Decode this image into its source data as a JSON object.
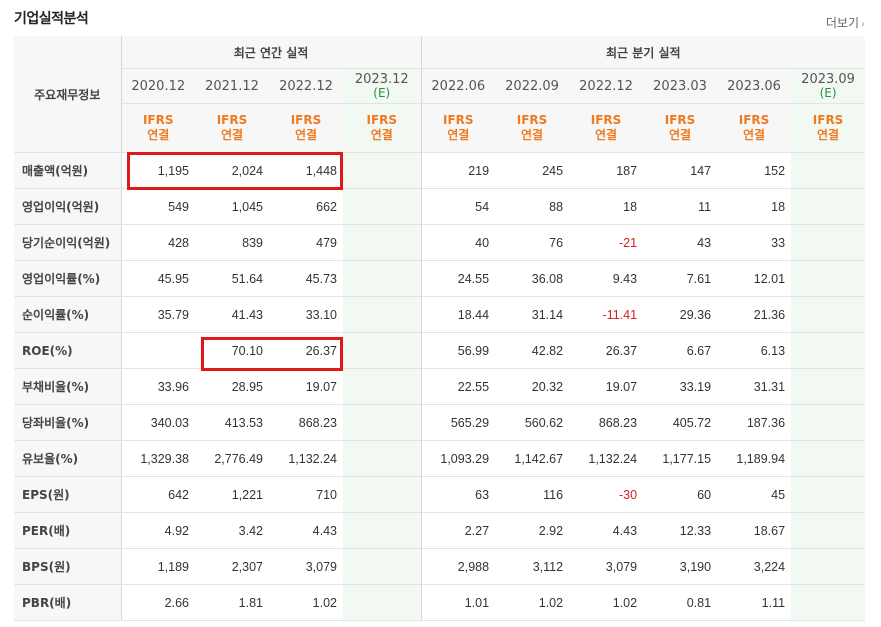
{
  "section_title": "기업실적분석",
  "more_label": "더보기",
  "label_header": "주요재무정보",
  "groups": {
    "annual": "최근 연간 실적",
    "quarter": "최근 분기 실적"
  },
  "periods": [
    {
      "date": "2020.12",
      "est": "",
      "ifrs": [
        "IFRS",
        "연결"
      ]
    },
    {
      "date": "2021.12",
      "est": "",
      "ifrs": [
        "IFRS",
        "연결"
      ]
    },
    {
      "date": "2022.12",
      "est": "",
      "ifrs": [
        "IFRS",
        "연결"
      ]
    },
    {
      "date": "2023.12",
      "est": "(E)",
      "ifrs": [
        "IFRS",
        "연결"
      ]
    },
    {
      "date": "2022.06",
      "est": "",
      "ifrs": [
        "IFRS",
        "연결"
      ]
    },
    {
      "date": "2022.09",
      "est": "",
      "ifrs": [
        "IFRS",
        "연결"
      ]
    },
    {
      "date": "2022.12",
      "est": "",
      "ifrs": [
        "IFRS",
        "연결"
      ]
    },
    {
      "date": "2023.03",
      "est": "",
      "ifrs": [
        "IFRS",
        "연결"
      ]
    },
    {
      "date": "2023.06",
      "est": "",
      "ifrs": [
        "IFRS",
        "연결"
      ]
    },
    {
      "date": "2023.09",
      "est": "(E)",
      "ifrs": [
        "IFRS",
        "연결"
      ]
    }
  ],
  "rows": [
    {
      "label": "매출액(억원)",
      "values": [
        "1,195",
        "2,024",
        "1,448",
        "",
        "219",
        "245",
        "187",
        "147",
        "152",
        ""
      ]
    },
    {
      "label": "영업이익(억원)",
      "values": [
        "549",
        "1,045",
        "662",
        "",
        "54",
        "88",
        "18",
        "11",
        "18",
        ""
      ]
    },
    {
      "label": "당기순이익(억원)",
      "values": [
        "428",
        "839",
        "479",
        "",
        "40",
        "76",
        "-21",
        "43",
        "33",
        ""
      ]
    },
    {
      "label": "영업이익률(%)",
      "values": [
        "45.95",
        "51.64",
        "45.73",
        "",
        "24.55",
        "36.08",
        "9.43",
        "7.61",
        "12.01",
        ""
      ]
    },
    {
      "label": "순이익률(%)",
      "values": [
        "35.79",
        "41.43",
        "33.10",
        "",
        "18.44",
        "31.14",
        "-11.41",
        "29.36",
        "21.36",
        ""
      ]
    },
    {
      "label": "ROE(%)",
      "values": [
        "",
        "70.10",
        "26.37",
        "",
        "56.99",
        "42.82",
        "26.37",
        "6.67",
        "6.13",
        ""
      ]
    },
    {
      "label": "부채비율(%)",
      "values": [
        "33.96",
        "28.95",
        "19.07",
        "",
        "22.55",
        "20.32",
        "19.07",
        "33.19",
        "31.31",
        ""
      ]
    },
    {
      "label": "당좌비율(%)",
      "values": [
        "340.03",
        "413.53",
        "868.23",
        "",
        "565.29",
        "560.62",
        "868.23",
        "405.72",
        "187.36",
        ""
      ]
    },
    {
      "label": "유보율(%)",
      "values": [
        "1,329.38",
        "2,776.49",
        "1,132.24",
        "",
        "1,093.29",
        "1,142.67",
        "1,132.24",
        "1,177.15",
        "1,189.94",
        ""
      ]
    },
    {
      "label": "EPS(원)",
      "values": [
        "642",
        "1,221",
        "710",
        "",
        "63",
        "116",
        "-30",
        "60",
        "45",
        ""
      ]
    },
    {
      "label": "PER(배)",
      "values": [
        "4.92",
        "3.42",
        "4.43",
        "",
        "2.27",
        "2.92",
        "4.43",
        "12.33",
        "18.67",
        ""
      ]
    },
    {
      "label": "BPS(원)",
      "values": [
        "1,189",
        "2,307",
        "3,079",
        "",
        "2,988",
        "3,112",
        "3,079",
        "3,190",
        "3,224",
        ""
      ]
    },
    {
      "label": "PBR(배)",
      "values": [
        "2.66",
        "1.81",
        "1.02",
        "",
        "1.01",
        "1.02",
        "1.02",
        "0.81",
        "1.11",
        ""
      ]
    }
  ],
  "colors": {
    "ifrs": "#f07a1f",
    "negative": "#d42020",
    "highlight": "#e01818",
    "estimate_bg": "#f2f9f3"
  }
}
